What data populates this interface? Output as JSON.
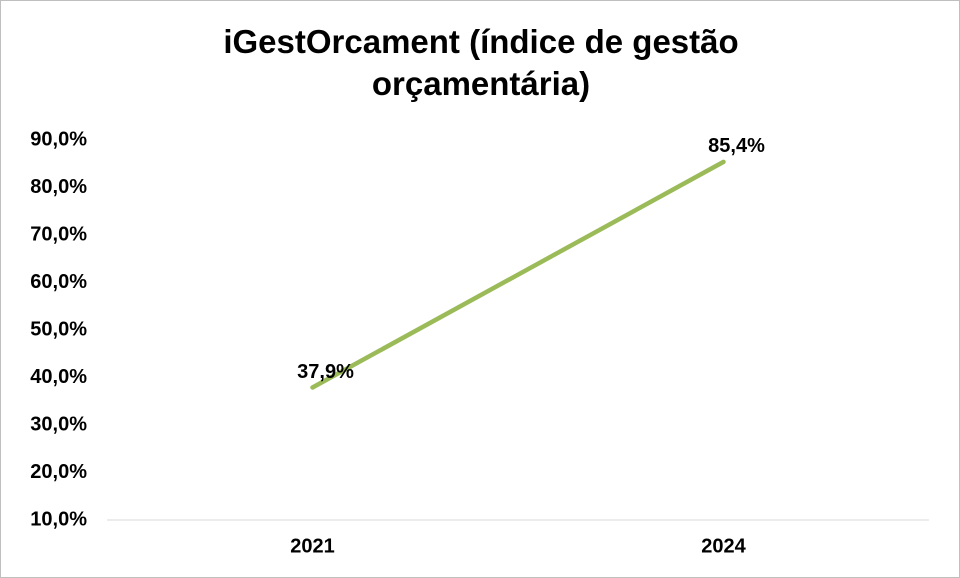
{
  "chart_data": {
    "type": "line",
    "title": "iGestOrcament (índice de gestão orçamentária)",
    "categories": [
      "2021",
      "2024"
    ],
    "series": [
      {
        "color": "#9bbb59",
        "values": [
          37.9,
          85.4
        ],
        "value_labels": [
          "37,9%",
          "85,4%"
        ]
      }
    ],
    "ylim": [
      10,
      90
    ],
    "yticks": [
      {
        "value": 10,
        "label": "10,0%"
      },
      {
        "value": 20,
        "label": "20,0%"
      },
      {
        "value": 30,
        "label": "30,0%"
      },
      {
        "value": 40,
        "label": "40,0%"
      },
      {
        "value": 50,
        "label": "50,0%"
      },
      {
        "value": 60,
        "label": "60,0%"
      },
      {
        "value": 70,
        "label": "70,0%"
      },
      {
        "value": 80,
        "label": "80,0%"
      },
      {
        "value": 90,
        "label": "90,0%"
      }
    ],
    "grid": false
  }
}
